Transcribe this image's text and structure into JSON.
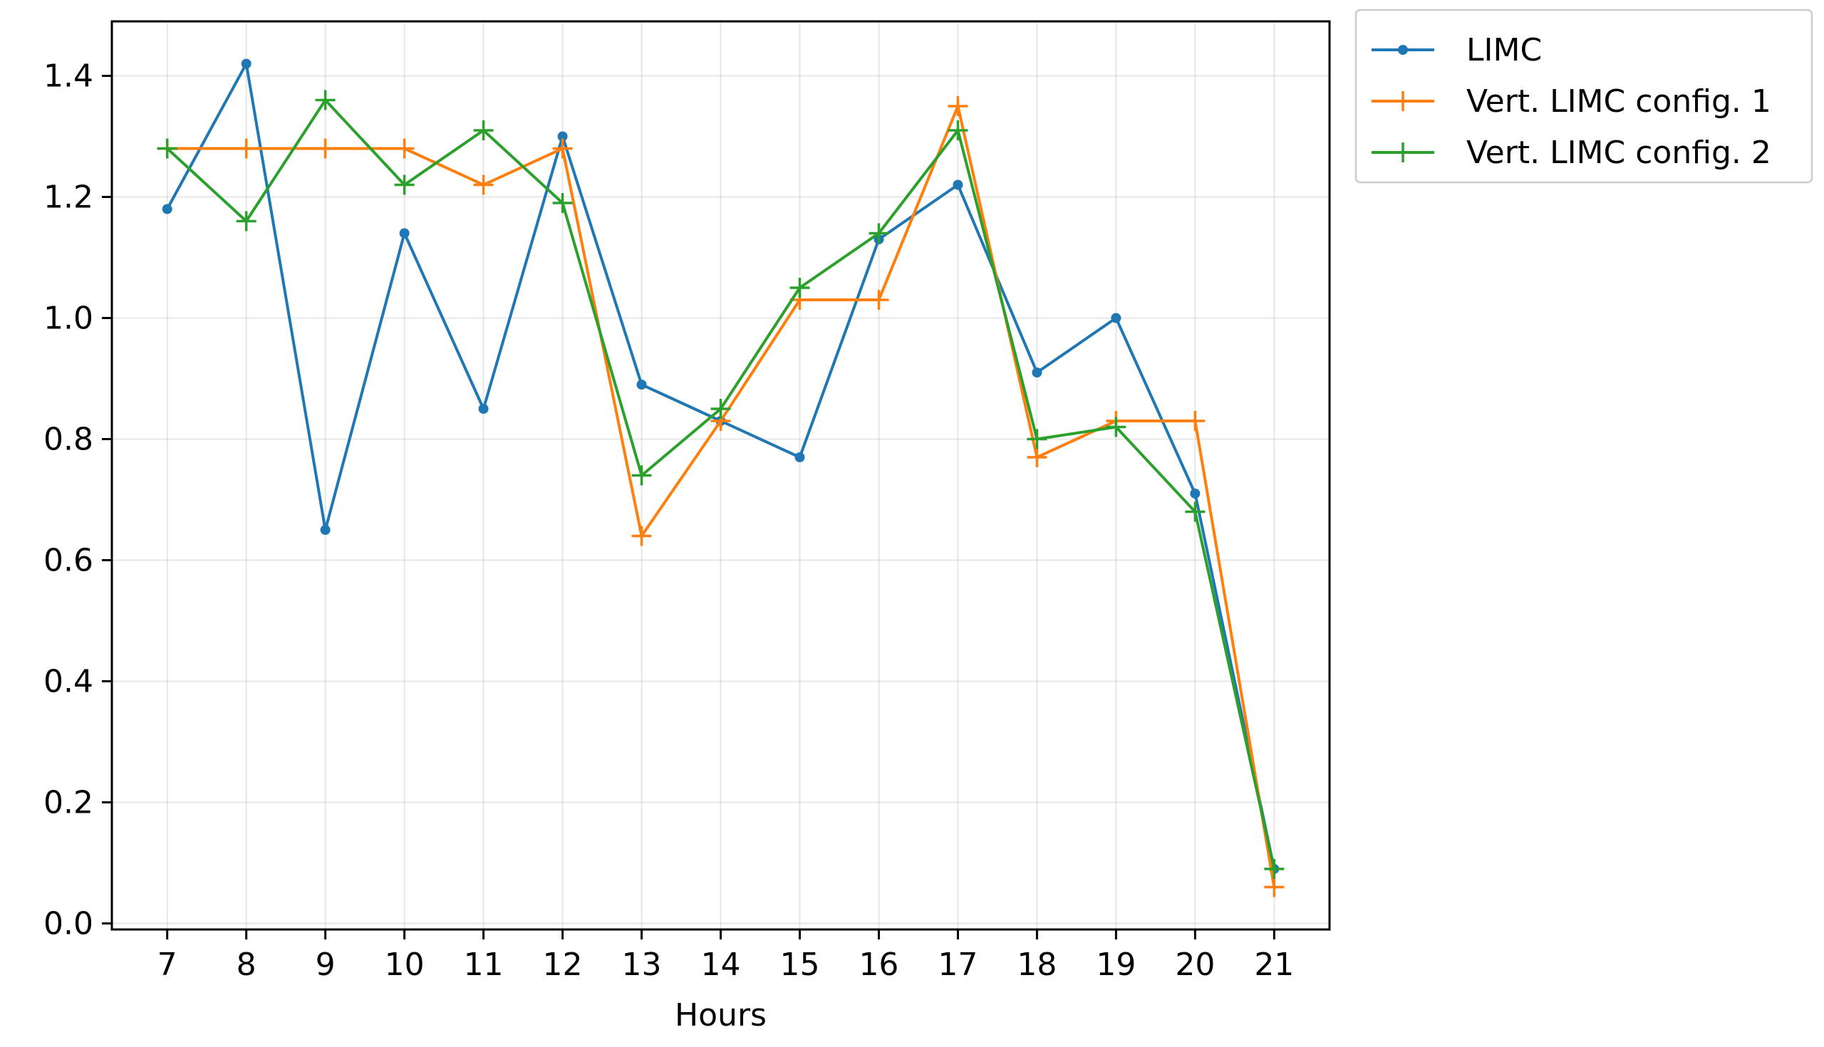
{
  "chart_data": {
    "type": "line",
    "title": "",
    "xlabel": "Hours",
    "ylabel": "",
    "x": [
      7,
      8,
      9,
      10,
      11,
      12,
      13,
      14,
      15,
      16,
      17,
      18,
      19,
      20,
      21
    ],
    "xlim": [
      6.3,
      21.7
    ],
    "ylim": [
      -0.01,
      1.49
    ],
    "xticks": [
      "7",
      "8",
      "9",
      "10",
      "11",
      "12",
      "13",
      "14",
      "15",
      "16",
      "17",
      "18",
      "19",
      "20",
      "21"
    ],
    "yticks": [
      "0.0",
      "0.2",
      "0.4",
      "0.6",
      "0.8",
      "1.0",
      "1.2",
      "1.4"
    ],
    "ytick_values": [
      0.0,
      0.2,
      0.4,
      0.6,
      0.8,
      1.0,
      1.2,
      1.4
    ],
    "grid": true,
    "legend_position": "outside-top-right",
    "series": [
      {
        "name": "LIMC",
        "color": "#1f77b4",
        "marker": "dot",
        "values": [
          1.18,
          1.42,
          0.65,
          1.14,
          0.85,
          1.3,
          0.89,
          0.83,
          0.77,
          1.13,
          1.22,
          0.91,
          1.0,
          0.71,
          0.09
        ]
      },
      {
        "name": "Vert. LIMC config. 1",
        "color": "#ff7f0e",
        "marker": "plus",
        "values": [
          1.28,
          1.28,
          1.28,
          1.28,
          1.22,
          1.28,
          0.64,
          0.83,
          1.03,
          1.03,
          1.35,
          0.77,
          0.83,
          0.83,
          0.06
        ]
      },
      {
        "name": "Vert. LIMC config. 2",
        "color": "#2ca02c",
        "marker": "plus",
        "values": [
          1.28,
          1.16,
          1.36,
          1.22,
          1.31,
          1.19,
          0.74,
          0.85,
          1.05,
          1.14,
          1.31,
          0.8,
          0.82,
          0.68,
          0.09
        ]
      }
    ]
  }
}
